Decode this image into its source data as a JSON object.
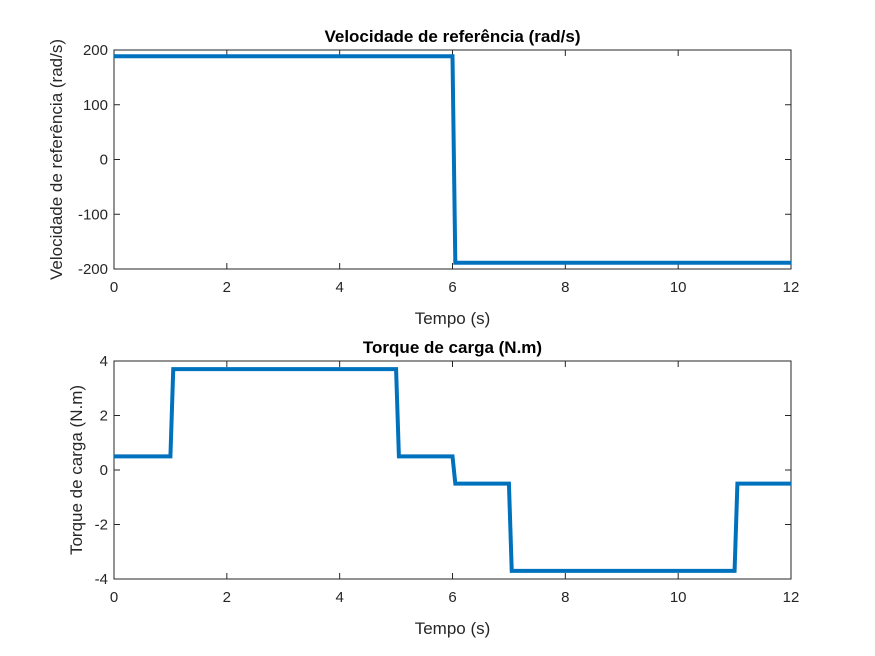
{
  "chart_data": [
    {
      "type": "line",
      "title": "Velocidade de referência (rad/s)",
      "xlabel": "Tempo (s)",
      "ylabel": "Velocidade de referência (rad/s)",
      "xlim": [
        0,
        12
      ],
      "ylim": [
        -200,
        200
      ],
      "xticks": [
        "0",
        "2",
        "4",
        "6",
        "8",
        "10",
        "12"
      ],
      "yticks": [
        "-200",
        "-100",
        "0",
        "100",
        "200"
      ],
      "grid": false,
      "color": "#0072BD",
      "series": [
        {
          "x": [
            0,
            6,
            6.05,
            12
          ],
          "y": [
            188.5,
            188.5,
            -188.5,
            -188.5
          ]
        }
      ]
    },
    {
      "type": "line",
      "title": "Torque de carga (N.m)",
      "xlabel": "Tempo (s)",
      "ylabel": "Torque de carga (N.m)",
      "xlim": [
        0,
        12
      ],
      "ylim": [
        -4,
        4
      ],
      "xticks": [
        "0",
        "2",
        "4",
        "6",
        "8",
        "10",
        "12"
      ],
      "yticks": [
        "-4",
        "-2",
        "0",
        "2",
        "4"
      ],
      "grid": false,
      "color": "#0072BD",
      "series": [
        {
          "x": [
            0,
            1,
            1.05,
            5,
            5.05,
            6,
            6.05,
            7,
            7.05,
            11,
            11.05,
            12
          ],
          "y": [
            0.5,
            0.5,
            3.7,
            3.7,
            0.5,
            0.5,
            -0.5,
            -0.5,
            -3.7,
            -3.7,
            -0.5,
            -0.5
          ]
        }
      ]
    }
  ]
}
